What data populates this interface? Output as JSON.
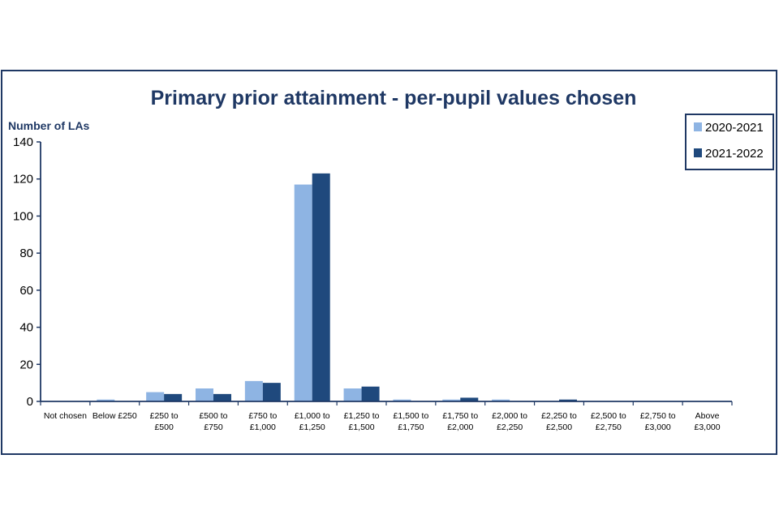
{
  "chart_data": {
    "type": "bar",
    "title": "Primary prior attainment - per-pupil values chosen",
    "ylabel": "Number of LAs",
    "xlabel": "",
    "ylim": [
      0,
      140
    ],
    "yticks": [
      0,
      20,
      40,
      60,
      80,
      100,
      120,
      140
    ],
    "grid": false,
    "legend_position": "top-right",
    "categories": [
      [
        "Not chosen"
      ],
      [
        "Below £250"
      ],
      [
        "£250 to",
        "£500"
      ],
      [
        "£500 to",
        "£750"
      ],
      [
        "£750 to",
        "£1,000"
      ],
      [
        "£1,000 to",
        "£1,250"
      ],
      [
        "£1,250 to",
        "£1,500"
      ],
      [
        "£1,500 to",
        "£1,750"
      ],
      [
        "£1,750 to",
        "£2,000"
      ],
      [
        "£2,000 to",
        "£2,250"
      ],
      [
        "£2,250 to",
        "£2,500"
      ],
      [
        "£2,500 to",
        "£2,750"
      ],
      [
        "£2,750 to",
        "£3,000"
      ],
      [
        "Above",
        "£3,000"
      ]
    ],
    "series": [
      {
        "name": "2020-2021",
        "color": "#8eb4e3",
        "values": [
          0,
          1,
          5,
          7,
          11,
          117,
          7,
          1,
          1,
          1,
          0,
          0,
          0,
          0
        ]
      },
      {
        "name": "2021-2022",
        "color": "#1f497d",
        "values": [
          0,
          0,
          4,
          4,
          10,
          123,
          8,
          0,
          2,
          0,
          1,
          0,
          0,
          0
        ]
      }
    ],
    "axis_color": "#1f3864",
    "border_color": "#1f3864"
  }
}
